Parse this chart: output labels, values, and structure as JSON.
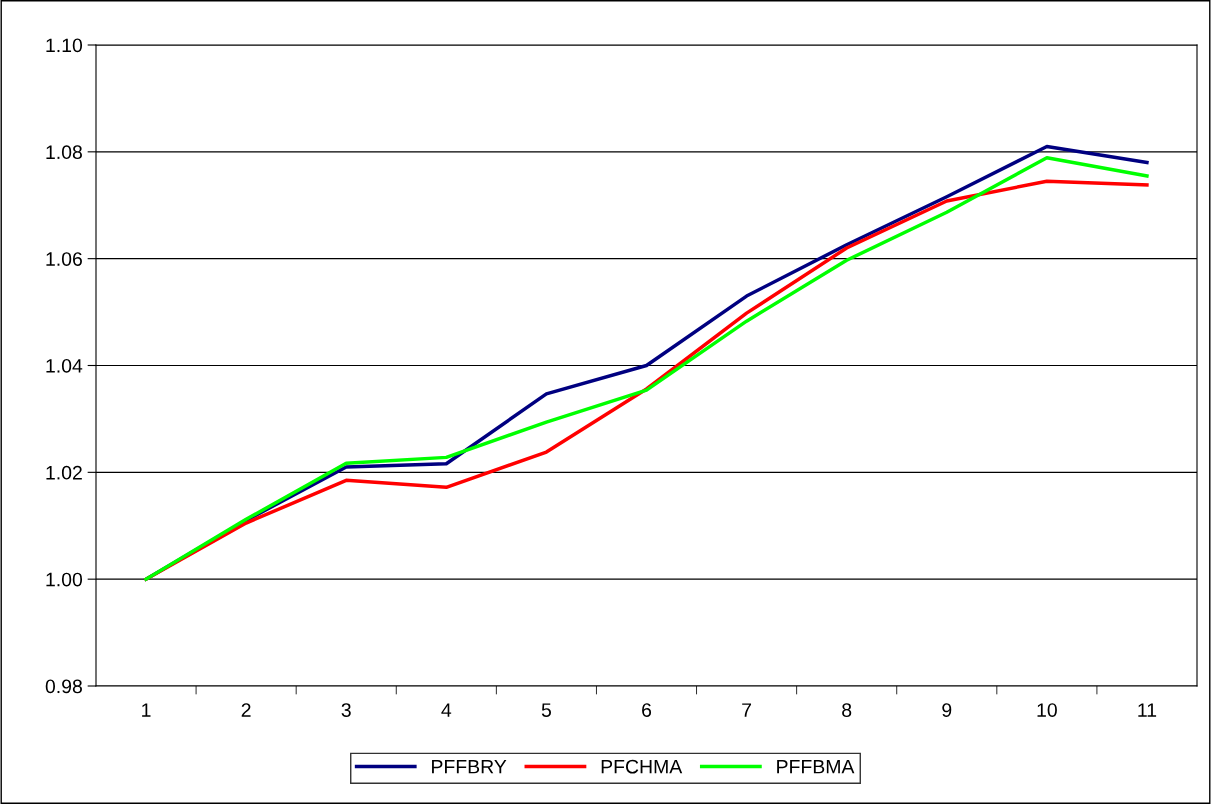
{
  "chart_data": {
    "type": "line",
    "categories": [
      "1",
      "2",
      "3",
      "4",
      "5",
      "6",
      "7",
      "8",
      "9",
      "10",
      "11"
    ],
    "series": [
      {
        "name": "PFFBRY",
        "color": "#000080",
        "values": [
          1.0,
          1.011,
          1.021,
          1.0216,
          1.0347,
          1.04,
          1.053,
          1.0626,
          1.0716,
          1.081,
          1.078
        ]
      },
      {
        "name": "PFCHMA",
        "color": "#ff0000",
        "values": [
          1.0,
          1.0105,
          1.0185,
          1.0172,
          1.0238,
          1.0356,
          1.0498,
          1.062,
          1.0708,
          1.0745,
          1.0738
        ]
      },
      {
        "name": "PFFBMA",
        "color": "#00ff00",
        "values": [
          1.0,
          1.0112,
          1.0217,
          1.0228,
          1.0294,
          1.0354,
          1.0483,
          1.0597,
          1.0687,
          1.0789,
          1.0755
        ]
      }
    ],
    "ylim": [
      0.98,
      1.1
    ],
    "yticks": [
      {
        "value": 0.98,
        "label": "0.98"
      },
      {
        "value": 1.0,
        "label": "1.00"
      },
      {
        "value": 1.02,
        "label": "1.02"
      },
      {
        "value": 1.04,
        "label": "1.04"
      },
      {
        "value": 1.06,
        "label": "1.06"
      },
      {
        "value": 1.08,
        "label": "1.08"
      },
      {
        "value": 1.1,
        "label": "1.10"
      }
    ],
    "grid": "y",
    "legend": "bottom",
    "marker": "none",
    "line_style": "solid"
  }
}
